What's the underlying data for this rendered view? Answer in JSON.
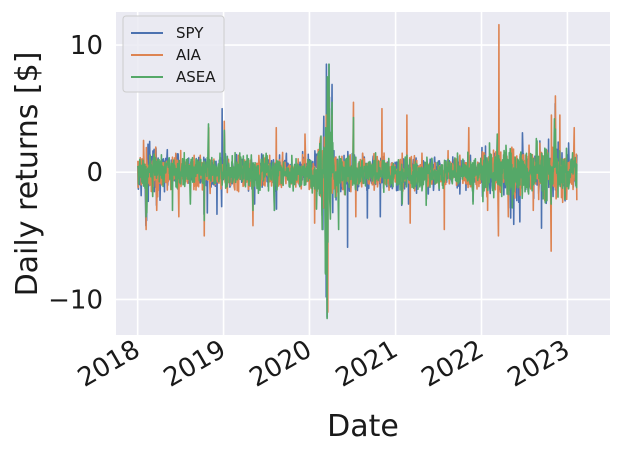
{
  "chart_data": {
    "type": "line",
    "xlabel": "Date",
    "ylabel": "Daily returns [$]",
    "x_range": [
      "2017-10-01",
      "2023-07-01"
    ],
    "ylim": [
      -12.8,
      12.6
    ],
    "x_ticks": [
      {
        "date": "2018-01-01",
        "label": "2018"
      },
      {
        "date": "2019-01-01",
        "label": "2019"
      },
      {
        "date": "2020-01-01",
        "label": "2020"
      },
      {
        "date": "2021-01-01",
        "label": "2021"
      },
      {
        "date": "2022-01-01",
        "label": "2022"
      },
      {
        "date": "2023-01-01",
        "label": "2023"
      }
    ],
    "y_ticks": [
      {
        "value": 10,
        "label": "10"
      },
      {
        "value": 0,
        "label": "0"
      },
      {
        "value": -10,
        "label": "−10"
      }
    ],
    "grid": true,
    "legend_position": "top-left",
    "background": "#eaeaf2",
    "series": [
      {
        "name": "SPY",
        "color": "#4c72b0",
        "x": [
          "2018-01-02",
          "2018-02-05",
          "2018-02-08",
          "2018-03-22",
          "2018-04-06",
          "2018-10-10",
          "2018-10-24",
          "2018-12-04",
          "2018-12-24",
          "2018-12-26",
          "2019-01-04",
          "2019-05-13",
          "2019-08-05",
          "2019-08-14",
          "2020-02-24",
          "2020-02-27",
          "2020-03-02",
          "2020-03-09",
          "2020-03-12",
          "2020-03-13",
          "2020-03-16",
          "2020-03-24",
          "2020-03-26",
          "2020-04-06",
          "2020-06-11",
          "2020-09-03",
          "2020-10-28",
          "2020-11-09",
          "2021-01-27",
          "2021-02-25",
          "2021-05-12",
          "2021-11-26",
          "2022-01-05",
          "2022-02-24",
          "2022-03-09",
          "2022-04-26",
          "2022-05-05",
          "2022-05-18",
          "2022-06-13",
          "2022-06-24",
          "2022-09-13",
          "2022-10-13",
          "2022-11-10",
          "2022-12-13",
          "2023-01-06",
          "2023-02-08"
        ],
        "y": [
          0.5,
          -4.2,
          -3.8,
          -2.6,
          -2.2,
          -3.3,
          -3.2,
          -3.3,
          -2.7,
          5.0,
          3.3,
          -2.5,
          -3.0,
          -2.9,
          -3.4,
          -4.5,
          4.4,
          -7.9,
          -9.8,
          8.5,
          -11.4,
          8.5,
          5.9,
          6.9,
          -5.9,
          -3.6,
          -3.5,
          1.2,
          -2.6,
          -2.5,
          -2.1,
          -2.3,
          -1.9,
          1.5,
          2.6,
          -2.8,
          -3.6,
          -4.1,
          -3.9,
          3.1,
          -4.4,
          2.6,
          5.4,
          0.7,
          2.3,
          -1.1
        ]
      },
      {
        "name": "AIA",
        "color": "#dd8452",
        "x": [
          "2018-01-26",
          "2018-02-06",
          "2018-03-23",
          "2018-06-25",
          "2018-10-11",
          "2018-10-30",
          "2019-01-04",
          "2019-05-06",
          "2019-08-13",
          "2019-12-13",
          "2020-01-23",
          "2020-02-03",
          "2020-03-12",
          "2020-03-19",
          "2020-03-20",
          "2020-03-24",
          "2020-04-06",
          "2020-07-06",
          "2020-07-16",
          "2020-11-04",
          "2021-02-18",
          "2021-03-04",
          "2021-07-27",
          "2021-11-08",
          "2022-01-27",
          "2022-03-14",
          "2022-03-16",
          "2022-04-25",
          "2022-08-09",
          "2022-10-24",
          "2022-10-25",
          "2022-11-11",
          "2022-11-30",
          "2023-01-30",
          "2023-02-10"
        ],
        "y": [
          2.5,
          -4.5,
          -3.0,
          -3.5,
          -5.0,
          3.5,
          4.0,
          -4.2,
          3.5,
          3.0,
          -4.0,
          -1.5,
          4.5,
          -11.0,
          1.5,
          6.0,
          4.5,
          5.5,
          -3.5,
          5.0,
          4.5,
          -4.0,
          -4.5,
          3.5,
          -3.0,
          -5.0,
          11.6,
          -3.5,
          -3.0,
          -6.2,
          4.5,
          6.0,
          4.5,
          3.5,
          -2.2
        ]
      },
      {
        "name": "ASEA",
        "color": "#55a868",
        "x": [
          "2018-01-02",
          "2018-02-06",
          "2018-02-09",
          "2018-05-29",
          "2018-08-13",
          "2018-10-11",
          "2018-10-29",
          "2019-01-04",
          "2019-05-06",
          "2019-08-05",
          "2020-01-31",
          "2020-02-24",
          "2020-03-09",
          "2020-03-10",
          "2020-03-16",
          "2020-03-17",
          "2020-03-19",
          "2020-03-24",
          "2020-03-26",
          "2020-04-06",
          "2020-05-04",
          "2020-07-06",
          "2021-01-29",
          "2021-05-11",
          "2021-11-26",
          "2022-02-22",
          "2022-03-09",
          "2022-05-12",
          "2022-10-24",
          "2022-11-07",
          "2022-11-11",
          "2023-02-09"
        ],
        "y": [
          0.5,
          -3.5,
          -3.2,
          -3.0,
          -2.5,
          -3.8,
          3.8,
          3.3,
          -3.0,
          -3.0,
          -2.9,
          -4.5,
          -8.0,
          3.5,
          -11.5,
          7.5,
          -5.5,
          8.5,
          5.0,
          5.5,
          -4.5,
          4.3,
          -2.5,
          -2.6,
          -2.5,
          -2.0,
          3.0,
          -2.8,
          -2.5,
          4.2,
          3.4,
          -1.2
        ]
      }
    ]
  }
}
